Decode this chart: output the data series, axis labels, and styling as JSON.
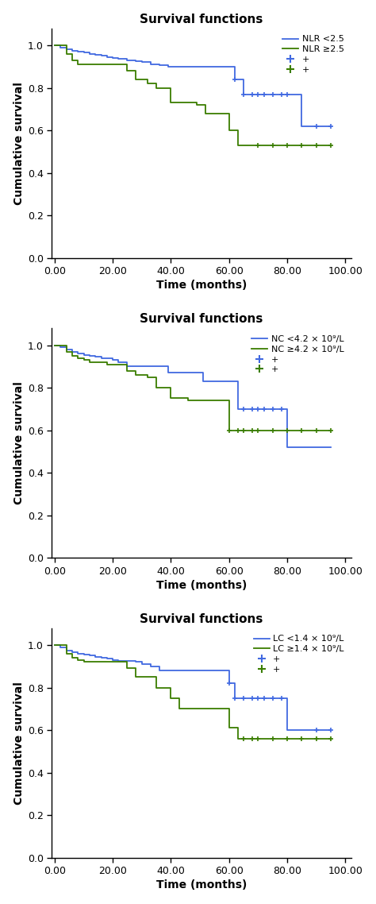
{
  "title": "Survival functions",
  "xlabel": "Time (months)",
  "ylabel": "Cumulative survival",
  "xlim": [
    -1,
    102
  ],
  "ylim": [
    0.0,
    1.08
  ],
  "yticks": [
    0.0,
    0.2,
    0.4,
    0.6,
    0.8,
    1.0
  ],
  "xticks": [
    0,
    20,
    40,
    60,
    80,
    100
  ],
  "xticklabels": [
    "0.00",
    "20.00",
    "40.00",
    "60.00",
    "80.00",
    "100.00"
  ],
  "plot1": {
    "blue_label": "NLR <2.5",
    "green_label": "NLR ≥2.5",
    "blue_x": [
      0,
      2,
      4,
      6,
      8,
      10,
      12,
      14,
      16,
      18,
      20,
      22,
      25,
      28,
      30,
      33,
      36,
      39,
      42,
      45,
      48,
      51,
      54,
      57,
      60,
      62,
      65,
      68,
      70,
      72,
      75,
      78,
      80,
      85,
      90,
      95
    ],
    "blue_y": [
      1.0,
      0.99,
      0.98,
      0.975,
      0.97,
      0.965,
      0.96,
      0.955,
      0.95,
      0.945,
      0.94,
      0.935,
      0.93,
      0.925,
      0.92,
      0.91,
      0.905,
      0.9,
      0.9,
      0.9,
      0.9,
      0.9,
      0.9,
      0.9,
      0.9,
      0.84,
      0.77,
      0.77,
      0.77,
      0.77,
      0.77,
      0.77,
      0.77,
      0.62,
      0.62,
      0.62
    ],
    "blue_censors": [
      62,
      65,
      68,
      70,
      72,
      75,
      78,
      80,
      90,
      95
    ],
    "blue_censor_y": [
      0.84,
      0.77,
      0.77,
      0.77,
      0.77,
      0.77,
      0.77,
      0.77,
      0.62,
      0.62
    ],
    "green_x": [
      0,
      2,
      4,
      6,
      8,
      10,
      12,
      14,
      16,
      18,
      20,
      22,
      25,
      28,
      30,
      32,
      35,
      38,
      40,
      43,
      46,
      49,
      52,
      55,
      57,
      60,
      63,
      65,
      68,
      70,
      75,
      80,
      85,
      90,
      95
    ],
    "green_y": [
      1.0,
      1.0,
      0.96,
      0.93,
      0.91,
      0.91,
      0.91,
      0.91,
      0.91,
      0.91,
      0.91,
      0.91,
      0.88,
      0.84,
      0.84,
      0.82,
      0.8,
      0.8,
      0.73,
      0.73,
      0.73,
      0.72,
      0.68,
      0.68,
      0.68,
      0.6,
      0.53,
      0.53,
      0.53,
      0.53,
      0.53,
      0.53,
      0.53,
      0.53,
      0.53
    ],
    "green_censors": [
      70,
      75,
      80,
      85,
      90,
      95
    ],
    "green_censor_y": [
      0.53,
      0.53,
      0.53,
      0.53,
      0.53,
      0.53
    ]
  },
  "plot2": {
    "blue_label": "NC <4.2 × 10⁹/L",
    "green_label": "NC ≥4.2 × 10⁹/L",
    "blue_x": [
      0,
      2,
      4,
      6,
      8,
      10,
      12,
      14,
      16,
      18,
      20,
      22,
      25,
      28,
      30,
      33,
      36,
      39,
      42,
      45,
      48,
      51,
      54,
      57,
      60,
      63,
      65,
      68,
      70,
      72,
      75,
      78,
      80,
      85,
      90,
      95
    ],
    "blue_y": [
      1.0,
      0.99,
      0.98,
      0.97,
      0.96,
      0.955,
      0.95,
      0.945,
      0.94,
      0.94,
      0.93,
      0.92,
      0.9,
      0.9,
      0.9,
      0.9,
      0.9,
      0.87,
      0.87,
      0.87,
      0.87,
      0.83,
      0.83,
      0.83,
      0.83,
      0.7,
      0.7,
      0.7,
      0.7,
      0.7,
      0.7,
      0.7,
      0.52,
      0.52,
      0.52,
      0.52
    ],
    "blue_censors": [
      65,
      68,
      70,
      72,
      75,
      78
    ],
    "blue_censor_y": [
      0.7,
      0.7,
      0.7,
      0.7,
      0.7,
      0.7
    ],
    "green_x": [
      0,
      2,
      4,
      6,
      8,
      10,
      12,
      14,
      16,
      18,
      20,
      22,
      25,
      28,
      30,
      32,
      35,
      38,
      40,
      43,
      46,
      49,
      52,
      55,
      57,
      60,
      63,
      65,
      68,
      70,
      75,
      80,
      85,
      90,
      95
    ],
    "green_y": [
      1.0,
      1.0,
      0.97,
      0.95,
      0.94,
      0.93,
      0.92,
      0.92,
      0.92,
      0.91,
      0.91,
      0.91,
      0.88,
      0.86,
      0.86,
      0.85,
      0.8,
      0.8,
      0.75,
      0.75,
      0.74,
      0.74,
      0.74,
      0.74,
      0.74,
      0.6,
      0.6,
      0.6,
      0.6,
      0.6,
      0.6,
      0.6,
      0.6,
      0.6,
      0.6
    ],
    "green_censors": [
      60,
      63,
      65,
      68,
      70,
      75,
      80,
      85,
      90,
      95
    ],
    "green_censor_y": [
      0.6,
      0.6,
      0.6,
      0.6,
      0.6,
      0.6,
      0.6,
      0.6,
      0.6,
      0.6
    ]
  },
  "plot3": {
    "blue_label": "LC <1.4 × 10⁹/L",
    "green_label": "LC ≥1.4 × 10⁹/L",
    "blue_x": [
      0,
      2,
      4,
      6,
      8,
      10,
      12,
      14,
      16,
      18,
      20,
      22,
      25,
      28,
      30,
      33,
      36,
      39,
      42,
      45,
      48,
      51,
      54,
      57,
      60,
      62,
      65,
      68,
      70,
      72,
      75,
      78,
      80,
      85,
      90,
      95
    ],
    "blue_y": [
      1.0,
      0.99,
      0.975,
      0.965,
      0.96,
      0.955,
      0.95,
      0.945,
      0.94,
      0.935,
      0.93,
      0.925,
      0.925,
      0.92,
      0.91,
      0.9,
      0.88,
      0.88,
      0.88,
      0.88,
      0.88,
      0.88,
      0.88,
      0.88,
      0.82,
      0.75,
      0.75,
      0.75,
      0.75,
      0.75,
      0.75,
      0.75,
      0.6,
      0.6,
      0.6,
      0.6
    ],
    "blue_censors": [
      60,
      62,
      65,
      68,
      70,
      72,
      75,
      78,
      90,
      95
    ],
    "blue_censor_y": [
      0.82,
      0.75,
      0.75,
      0.75,
      0.75,
      0.75,
      0.75,
      0.75,
      0.6,
      0.6
    ],
    "green_x": [
      0,
      2,
      4,
      6,
      8,
      10,
      12,
      14,
      16,
      18,
      20,
      22,
      25,
      28,
      30,
      32,
      35,
      38,
      40,
      43,
      46,
      49,
      52,
      55,
      57,
      60,
      63,
      65,
      68,
      70,
      75,
      80,
      85,
      90,
      95
    ],
    "green_y": [
      1.0,
      1.0,
      0.96,
      0.94,
      0.93,
      0.92,
      0.92,
      0.92,
      0.92,
      0.92,
      0.92,
      0.92,
      0.89,
      0.85,
      0.85,
      0.85,
      0.8,
      0.8,
      0.75,
      0.7,
      0.7,
      0.7,
      0.7,
      0.7,
      0.7,
      0.61,
      0.56,
      0.56,
      0.56,
      0.56,
      0.56,
      0.56,
      0.56,
      0.56,
      0.56
    ],
    "green_censors": [
      65,
      68,
      70,
      75,
      80,
      85,
      90,
      95
    ],
    "green_censor_y": [
      0.56,
      0.56,
      0.56,
      0.56,
      0.56,
      0.56,
      0.56,
      0.56
    ]
  },
  "blue_color": "#4169E1",
  "green_color": "#3A7D00",
  "line_width": 1.3
}
